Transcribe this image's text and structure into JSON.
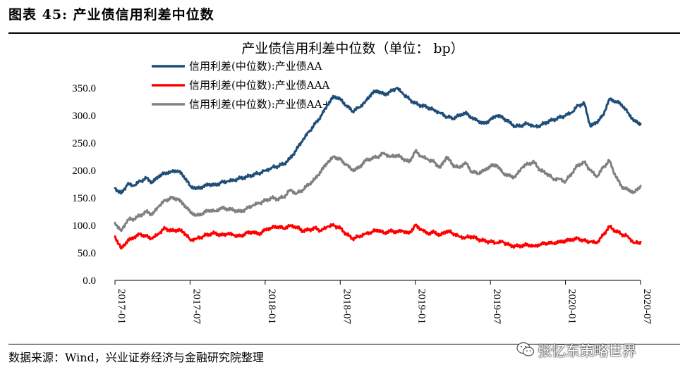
{
  "figure_title": "图表 45:  产业债信用利差中位数",
  "source_note": "数据来源：Wind，兴业证券经济与金融研究院整理",
  "watermark": "张忆东策略世界",
  "chart_data": {
    "type": "line",
    "title": "产业债信用利差中位数（单位： bp）",
    "xlabel": "",
    "ylabel": "",
    "ylim": [
      0,
      350
    ],
    "yticks": [
      0,
      50,
      100,
      150,
      200,
      250,
      300,
      350
    ],
    "ytick_labels": [
      "0.0",
      "50.0",
      "100.0",
      "150.0",
      "200.0",
      "250.0",
      "300.0",
      "350.0"
    ],
    "xlim": [
      0,
      42
    ],
    "xticks": [
      0,
      6,
      12,
      18,
      24,
      30,
      36,
      42
    ],
    "xtick_labels": [
      "2017-01",
      "2017-07",
      "2018-01",
      "2018-07",
      "2019-01",
      "2019-07",
      "2020-01",
      "2020-07"
    ],
    "x_unit": "months since 2017-01",
    "legend_position": "top-left",
    "grid": false,
    "series": [
      {
        "name": "信用利差(中位数):产业债AA",
        "color": "#1f4e79",
        "x": [
          0,
          0.5,
          1,
          1.5,
          2,
          2.5,
          3,
          3.5,
          4,
          4.5,
          5,
          5.5,
          6,
          6.5,
          7,
          7.5,
          8,
          8.5,
          9,
          9.5,
          10,
          10.5,
          11,
          11.5,
          12,
          12.5,
          13,
          13.5,
          14,
          14.5,
          15,
          15.5,
          16,
          16.5,
          17,
          17.5,
          18,
          18.5,
          19,
          19.5,
          20,
          20.5,
          21,
          21.5,
          22,
          22.5,
          23,
          23.5,
          24,
          24.5,
          25,
          25.5,
          26,
          26.5,
          27,
          27.5,
          28,
          28.5,
          29,
          29.5,
          30,
          30.5,
          31,
          31.5,
          32,
          32.5,
          33,
          33.5,
          34,
          34.5,
          35,
          35.5,
          36,
          36.5,
          37,
          37.5,
          38,
          38.5,
          39,
          39.5,
          40,
          40.5,
          41,
          41.5,
          42
        ],
        "values": [
          168,
          158,
          175,
          172,
          180,
          186,
          178,
          190,
          195,
          198,
          200,
          190,
          172,
          167,
          170,
          175,
          173,
          178,
          180,
          182,
          186,
          188,
          192,
          195,
          200,
          205,
          208,
          212,
          222,
          238,
          255,
          270,
          285,
          300,
          320,
          335,
          330,
          318,
          308,
          315,
          325,
          340,
          345,
          338,
          343,
          350,
          340,
          330,
          322,
          318,
          315,
          310,
          305,
          298,
          295,
          300,
          305,
          296,
          290,
          285,
          292,
          300,
          296,
          288,
          280,
          282,
          286,
          280,
          282,
          288,
          292,
          296,
          300,
          305,
          318,
          322,
          280,
          288,
          300,
          330,
          326,
          320,
          305,
          290,
          285
        ]
      },
      {
        "name": "信用利差(中位数):产业债AAA",
        "color": "#ff0000",
        "x": [
          0,
          0.5,
          1,
          1.5,
          2,
          2.5,
          3,
          3.5,
          4,
          4.5,
          5,
          5.5,
          6,
          6.5,
          7,
          7.5,
          8,
          8.5,
          9,
          9.5,
          10,
          10.5,
          11,
          11.5,
          12,
          12.5,
          13,
          13.5,
          14,
          14.5,
          15,
          15.5,
          16,
          16.5,
          17,
          17.5,
          18,
          18.5,
          19,
          19.5,
          20,
          20.5,
          21,
          21.5,
          22,
          22.5,
          23,
          23.5,
          24,
          24.5,
          25,
          25.5,
          26,
          26.5,
          27,
          27.5,
          28,
          28.5,
          29,
          29.5,
          30,
          30.5,
          31,
          31.5,
          32,
          32.5,
          33,
          33.5,
          34,
          34.5,
          35,
          35.5,
          36,
          36.5,
          37,
          37.5,
          38,
          38.5,
          39,
          39.5,
          40,
          40.5,
          41,
          41.5,
          42
        ],
        "values": [
          80,
          58,
          72,
          78,
          84,
          80,
          76,
          85,
          95,
          90,
          92,
          88,
          74,
          76,
          80,
          84,
          86,
          82,
          85,
          82,
          80,
          86,
          88,
          84,
          92,
          96,
          98,
          95,
          100,
          97,
          90,
          92,
          95,
          90,
          98,
          100,
          95,
          84,
          76,
          80,
          85,
          88,
          92,
          86,
          90,
          88,
          90,
          85,
          100,
          92,
          85,
          88,
          82,
          90,
          86,
          80,
          78,
          80,
          75,
          72,
          70,
          68,
          70,
          64,
          62,
          63,
          65,
          62,
          66,
          68,
          68,
          70,
          72,
          74,
          76,
          72,
          70,
          68,
          82,
          98,
          90,
          84,
          80,
          68,
          70
        ]
      },
      {
        "name": "信用利差(中位数):产业债AA+",
        "color": "#808080",
        "x": [
          0,
          0.5,
          1,
          1.5,
          2,
          2.5,
          3,
          3.5,
          4,
          4.5,
          5,
          5.5,
          6,
          6.5,
          7,
          7.5,
          8,
          8.5,
          9,
          9.5,
          10,
          10.5,
          11,
          11.5,
          12,
          12.5,
          13,
          13.5,
          14,
          14.5,
          15,
          15.5,
          16,
          16.5,
          17,
          17.5,
          18,
          18.5,
          19,
          19.5,
          20,
          20.5,
          21,
          21.5,
          22,
          22.5,
          23,
          23.5,
          24,
          24.5,
          25,
          25.5,
          26,
          26.5,
          27,
          27.5,
          28,
          28.5,
          29,
          29.5,
          30,
          30.5,
          31,
          31.5,
          32,
          32.5,
          33,
          33.5,
          34,
          34.5,
          35,
          35.5,
          36,
          36.5,
          37,
          37.5,
          38,
          38.5,
          39,
          39.5,
          40,
          40.5,
          41,
          41.5,
          42
        ],
        "values": [
          105,
          90,
          110,
          112,
          118,
          125,
          120,
          135,
          145,
          150,
          148,
          138,
          125,
          118,
          122,
          128,
          126,
          132,
          130,
          128,
          125,
          130,
          136,
          140,
          145,
          150,
          148,
          152,
          165,
          158,
          165,
          175,
          185,
          200,
          215,
          225,
          220,
          210,
          200,
          205,
          218,
          222,
          225,
          232,
          225,
          228,
          222,
          215,
          235,
          225,
          220,
          215,
          205,
          225,
          210,
          205,
          215,
          198,
          195,
          200,
          208,
          210,
          195,
          190,
          188,
          205,
          212,
          215,
          200,
          195,
          185,
          185,
          180,
          195,
          210,
          215,
          200,
          188,
          205,
          218,
          190,
          170,
          165,
          160,
          172
        ]
      }
    ]
  }
}
